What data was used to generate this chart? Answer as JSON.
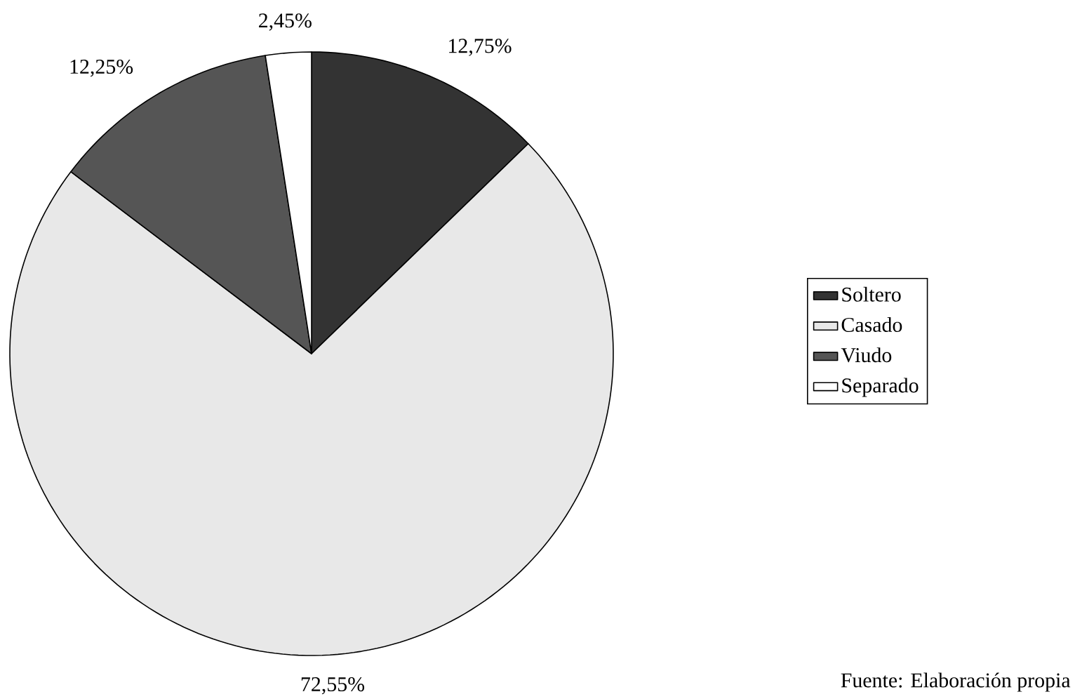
{
  "chart_data": {
    "type": "pie",
    "categories": [
      "Soltero",
      "Casado",
      "Viudo",
      "Separado"
    ],
    "values": [
      12.75,
      72.55,
      12.25,
      2.45
    ],
    "colors": [
      "#333333",
      "#e8e8e8",
      "#555555",
      "#ffffff"
    ],
    "value_labels": [
      "12,75%",
      "72,55%",
      "12,25%",
      "2,45%"
    ],
    "legend": "right",
    "annotations": [
      "Fuente: Elaboración propia"
    ]
  }
}
